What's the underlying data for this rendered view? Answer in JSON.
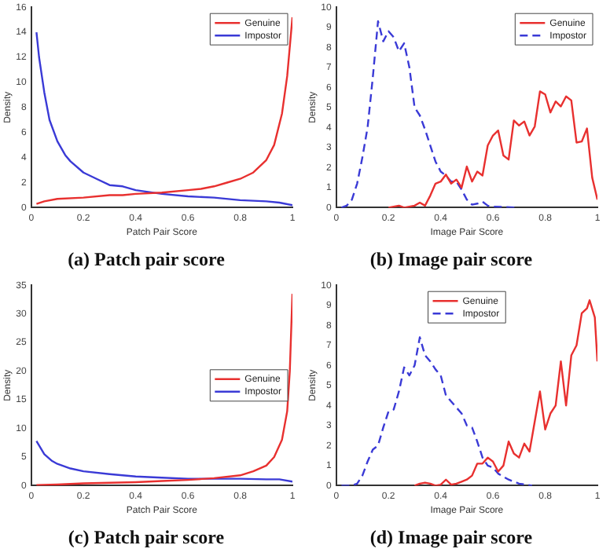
{
  "chart_data": [
    {
      "type": "line",
      "title": "(a) Patch pair score",
      "xlabel": "Patch Pair Score",
      "ylabel": "Density",
      "xlim": [
        0,
        1
      ],
      "xticks": [
        0,
        0.2,
        0.4,
        0.6,
        0.8,
        1
      ],
      "ylim": [
        0,
        16
      ],
      "yticks": [
        0,
        2,
        4,
        6,
        8,
        10,
        12,
        14,
        16
      ],
      "legend": "top right",
      "line_style": "solid",
      "series": [
        {
          "name": "Genuine",
          "color": "#e8302f",
          "x": [
            0.02,
            0.05,
            0.1,
            0.2,
            0.3,
            0.35,
            0.4,
            0.5,
            0.6,
            0.65,
            0.7,
            0.75,
            0.8,
            0.85,
            0.9,
            0.93,
            0.96,
            0.98,
            1
          ],
          "values": [
            0.3,
            0.5,
            0.7,
            0.8,
            1.0,
            1.0,
            1.1,
            1.2,
            1.4,
            1.5,
            1.7,
            2.0,
            2.3,
            2.8,
            3.8,
            5,
            7.5,
            10.5,
            15.2
          ]
        },
        {
          "name": "Impostor",
          "color": "#3a3ad6",
          "x": [
            0.02,
            0.03,
            0.05,
            0.07,
            0.1,
            0.13,
            0.15,
            0.2,
            0.25,
            0.3,
            0.35,
            0.4,
            0.5,
            0.6,
            0.7,
            0.8,
            0.9,
            0.95,
            1
          ],
          "values": [
            14,
            12,
            9.2,
            7,
            5.3,
            4.2,
            3.7,
            2.8,
            2.3,
            1.8,
            1.7,
            1.4,
            1.1,
            0.9,
            0.8,
            0.6,
            0.5,
            0.4,
            0.2
          ]
        }
      ]
    },
    {
      "type": "line",
      "title": "(b) Image pair score",
      "xlabel": "Image Pair Score",
      "ylabel": "Density",
      "xlim": [
        0,
        1
      ],
      "xticks": [
        0,
        0.2,
        0.4,
        0.6,
        0.8,
        1
      ],
      "ylim": [
        0,
        10
      ],
      "yticks": [
        0,
        1,
        2,
        3,
        4,
        5,
        6,
        7,
        8,
        9,
        10
      ],
      "legend": "top right",
      "series": [
        {
          "name": "Genuine",
          "color": "#e8302f",
          "line_style": "solid",
          "x": [
            0.2,
            0.24,
            0.26,
            0.3,
            0.32,
            0.34,
            0.36,
            0.38,
            0.4,
            0.42,
            0.44,
            0.46,
            0.48,
            0.5,
            0.52,
            0.54,
            0.56,
            0.58,
            0.6,
            0.62,
            0.64,
            0.66,
            0.68,
            0.7,
            0.72,
            0.74,
            0.76,
            0.78,
            0.8,
            0.82,
            0.84,
            0.86,
            0.88,
            0.9,
            0.92,
            0.94,
            0.96,
            0.98,
            1
          ],
          "values": [
            0,
            0.1,
            0,
            0.1,
            0.25,
            0.1,
            0.6,
            1.2,
            1.3,
            1.65,
            1.2,
            1.4,
            1.0,
            2.05,
            1.3,
            1.8,
            1.6,
            3.1,
            3.6,
            3.85,
            2.6,
            2.4,
            4.35,
            4.1,
            4.3,
            3.6,
            4.05,
            5.8,
            5.65,
            4.75,
            5.3,
            5.05,
            5.55,
            5.35,
            3.25,
            3.3,
            3.95,
            1.5,
            0.4
          ]
        },
        {
          "name": "Impostor",
          "color": "#3a3ad6",
          "line_style": "dashed",
          "x": [
            0.02,
            0.04,
            0.06,
            0.08,
            0.1,
            0.12,
            0.14,
            0.16,
            0.18,
            0.2,
            0.22,
            0.24,
            0.26,
            0.28,
            0.3,
            0.32,
            0.34,
            0.36,
            0.38,
            0.4,
            0.42,
            0.44,
            0.46,
            0.48,
            0.5,
            0.52,
            0.54,
            0.56,
            0.58,
            0.6,
            0.7
          ],
          "values": [
            0,
            0.1,
            0.4,
            1.2,
            2.5,
            4.0,
            6.5,
            9.3,
            8.3,
            8.8,
            8.5,
            7.8,
            8.2,
            7.0,
            5.0,
            4.6,
            3.9,
            3.1,
            2.3,
            1.8,
            1.6,
            1.3,
            1.3,
            0.9,
            0.4,
            0.15,
            0.2,
            0.3,
            0.1,
            0.05,
            0
          ]
        }
      ]
    },
    {
      "type": "line",
      "title": "(c) Patch pair score",
      "xlabel": "Patch Pair Score",
      "ylabel": "Density",
      "xlim": [
        0,
        1
      ],
      "xticks": [
        0,
        0.2,
        0.4,
        0.6,
        0.8,
        1
      ],
      "ylim": [
        0,
        35
      ],
      "yticks": [
        0,
        5,
        10,
        15,
        20,
        25,
        30,
        35
      ],
      "legend": "right",
      "line_style": "solid",
      "series": [
        {
          "name": "Genuine",
          "color": "#e8302f",
          "x": [
            0.02,
            0.1,
            0.2,
            0.3,
            0.4,
            0.5,
            0.6,
            0.7,
            0.8,
            0.85,
            0.9,
            0.93,
            0.96,
            0.98,
            0.99,
            1
          ],
          "values": [
            0.1,
            0.2,
            0.4,
            0.5,
            0.6,
            0.8,
            1.0,
            1.3,
            1.8,
            2.5,
            3.5,
            5,
            8,
            13,
            20,
            33.5
          ]
        },
        {
          "name": "Impostor",
          "color": "#3a3ad6",
          "x": [
            0.02,
            0.05,
            0.08,
            0.1,
            0.15,
            0.2,
            0.3,
            0.4,
            0.5,
            0.6,
            0.7,
            0.8,
            0.9,
            0.95,
            1
          ],
          "values": [
            7.8,
            5.5,
            4.3,
            3.8,
            3,
            2.5,
            2.0,
            1.6,
            1.4,
            1.2,
            1.2,
            1.2,
            1.1,
            1.1,
            0.7
          ]
        }
      ]
    },
    {
      "type": "line",
      "title": "(d) Image pair score",
      "xlabel": "Image Pair Score",
      "ylabel": "Density",
      "xlim": [
        0,
        1
      ],
      "xticks": [
        0,
        0.2,
        0.4,
        0.6,
        0.8,
        1
      ],
      "ylim": [
        0,
        10
      ],
      "yticks": [
        0,
        1,
        2,
        3,
        4,
        5,
        6,
        7,
        8,
        9,
        10
      ],
      "legend": "top",
      "series": [
        {
          "name": "Genuine",
          "color": "#e8302f",
          "line_style": "solid",
          "x": [
            0.3,
            0.32,
            0.34,
            0.36,
            0.38,
            0.4,
            0.42,
            0.44,
            0.46,
            0.48,
            0.5,
            0.52,
            0.54,
            0.56,
            0.58,
            0.6,
            0.62,
            0.64,
            0.66,
            0.68,
            0.7,
            0.72,
            0.74,
            0.76,
            0.78,
            0.8,
            0.82,
            0.84,
            0.86,
            0.88,
            0.9,
            0.92,
            0.94,
            0.96,
            0.97,
            0.99,
            1
          ],
          "values": [
            0,
            0.1,
            0.15,
            0.1,
            0,
            0.05,
            0.3,
            0.05,
            0.1,
            0.2,
            0.3,
            0.5,
            1.1,
            1.1,
            1.4,
            1.2,
            0.7,
            1.0,
            2.2,
            1.6,
            1.4,
            2.1,
            1.7,
            3.2,
            4.7,
            2.8,
            3.6,
            4.0,
            6.2,
            4.0,
            6.5,
            7.0,
            8.6,
            8.85,
            9.25,
            8.4,
            6.2
          ]
        },
        {
          "name": "Impostor",
          "color": "#3a3ad6",
          "line_style": "dashed",
          "x": [
            0.02,
            0.06,
            0.08,
            0.1,
            0.12,
            0.14,
            0.16,
            0.18,
            0.2,
            0.22,
            0.24,
            0.26,
            0.28,
            0.3,
            0.32,
            0.34,
            0.36,
            0.38,
            0.4,
            0.42,
            0.44,
            0.46,
            0.48,
            0.5,
            0.52,
            0.54,
            0.56,
            0.58,
            0.6,
            0.62,
            0.66,
            0.7,
            0.75
          ],
          "values": [
            0,
            0,
            0.1,
            0.5,
            1.2,
            1.8,
            2.0,
            2.9,
            3.7,
            3.8,
            4.7,
            5.9,
            5.5,
            6.0,
            7.4,
            6.5,
            6.2,
            5.8,
            5.5,
            4.5,
            4.2,
            3.9,
            3.6,
            3.0,
            2.9,
            2.2,
            1.4,
            1.0,
            0.9,
            0.6,
            0.3,
            0.1,
            0
          ]
        }
      ]
    }
  ]
}
